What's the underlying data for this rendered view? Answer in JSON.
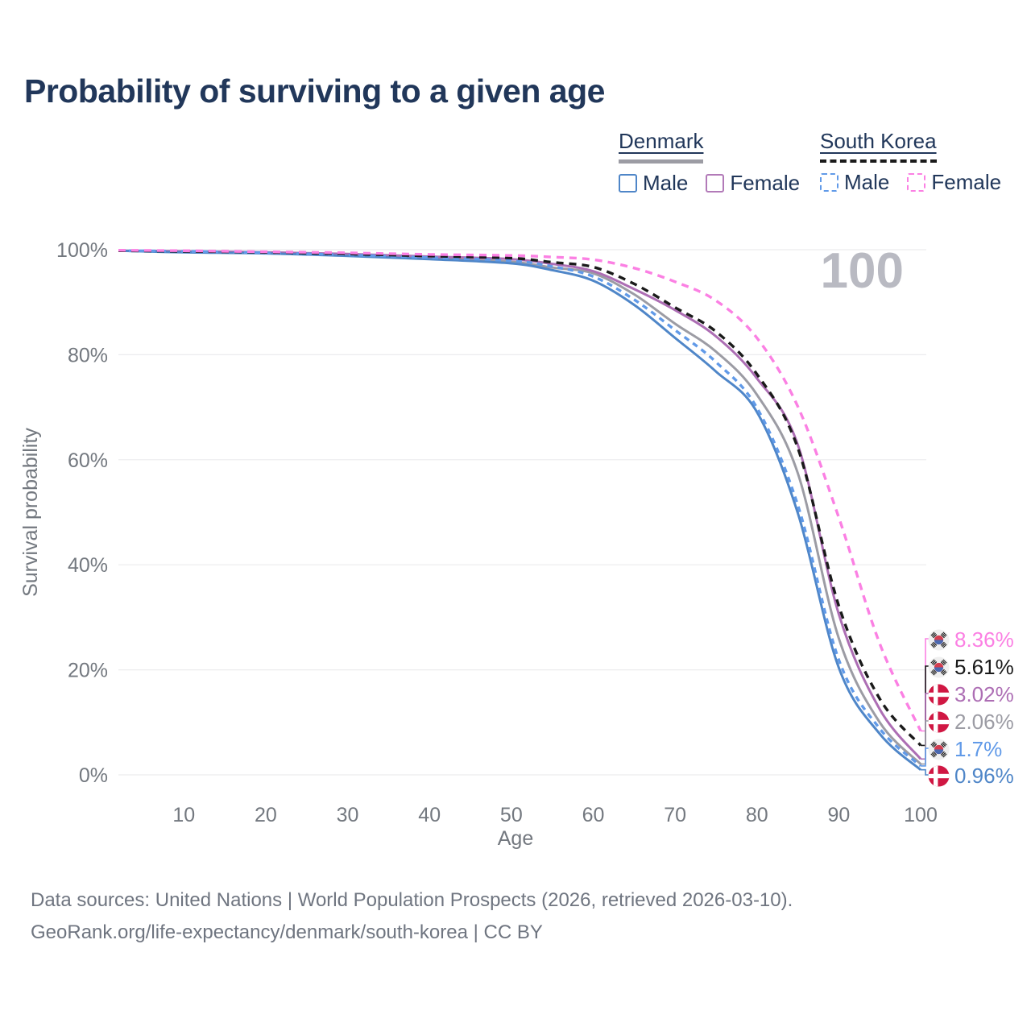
{
  "title": "Probability of surviving to a given age",
  "watermark": "100",
  "legend": {
    "groups": [
      {
        "id": "denmark",
        "label": "Denmark",
        "line_style": "solid",
        "line_color": "#9c9ca4",
        "items": [
          {
            "id": "dk_male",
            "label": "Male",
            "color": "#4f86c8",
            "dashed": false
          },
          {
            "id": "dk_female",
            "label": "Female",
            "color": "#b27ab8",
            "dashed": false
          }
        ]
      },
      {
        "id": "south_korea",
        "label": "South Korea",
        "line_style": "dashed",
        "line_color": "#1a1a1a",
        "items": [
          {
            "id": "kr_male",
            "label": "Male",
            "color": "#619ae8",
            "dashed": true
          },
          {
            "id": "kr_female",
            "label": "Female",
            "color": "#fb80e3",
            "dashed": true
          }
        ]
      }
    ]
  },
  "chart_data": {
    "type": "line",
    "title": "Probability of surviving to a given age",
    "xlabel": "Age",
    "ylabel": "Survival probability",
    "xlim": [
      2,
      100
    ],
    "ylim": [
      0,
      100
    ],
    "grid": "horizontal-only",
    "legend_position": "top-right",
    "x_ticks": [
      {
        "value": 10,
        "label": "10"
      },
      {
        "value": 20,
        "label": "20"
      },
      {
        "value": 30,
        "label": "30"
      },
      {
        "value": 40,
        "label": "40"
      },
      {
        "value": 50,
        "label": "50"
      },
      {
        "value": 60,
        "label": "60"
      },
      {
        "value": 70,
        "label": "70"
      },
      {
        "value": 80,
        "label": "80"
      },
      {
        "value": 90,
        "label": "90"
      },
      {
        "value": 100,
        "label": "100"
      }
    ],
    "y_ticks": [
      {
        "value": 100,
        "label": "100%"
      },
      {
        "value": 80,
        "label": "80%"
      },
      {
        "value": 60,
        "label": "60%"
      },
      {
        "value": 40,
        "label": "40%"
      },
      {
        "value": 20,
        "label": "20%"
      },
      {
        "value": 0,
        "label": "0%"
      }
    ],
    "ages": [
      2,
      10,
      20,
      30,
      40,
      50,
      55,
      60,
      65,
      70,
      75,
      80,
      85,
      90,
      95,
      100
    ],
    "series": [
      {
        "id": "dk_both",
        "name": "Denmark (both sexes)",
        "country": "denmark",
        "sex": "both",
        "color": "#9c9ca4",
        "dashed": false,
        "values": [
          99.8,
          99.6,
          99.4,
          99.0,
          98.4,
          97.7,
          96.6,
          95.5,
          91.5,
          85.9,
          80.6,
          72.4,
          57.4,
          26.0,
          10.0,
          2.06
        ]
      },
      {
        "id": "dk_female",
        "name": "Denmark Female",
        "country": "denmark",
        "sex": "female",
        "color": "#ad6eb4",
        "dashed": false,
        "values": [
          99.8,
          99.7,
          99.5,
          99.2,
          98.7,
          98.2,
          97.3,
          95.9,
          92.5,
          88.5,
          83.5,
          75.5,
          62.8,
          30.6,
          12.5,
          3.02
        ]
      },
      {
        "id": "dk_male",
        "name": "Denmark Male",
        "country": "denmark",
        "sex": "male",
        "color": "#4f86c8",
        "dashed": false,
        "values": [
          99.8,
          99.5,
          99.3,
          98.8,
          98.2,
          97.4,
          96.1,
          94.1,
          89.5,
          83.2,
          76.8,
          69.1,
          49.8,
          20.4,
          7.8,
          0.96
        ]
      },
      {
        "id": "kr_male",
        "name": "South Korea Male",
        "country": "south-korea",
        "sex": "male",
        "color": "#619ae8",
        "dashed": true,
        "values": [
          99.8,
          99.7,
          99.4,
          99.0,
          98.5,
          97.9,
          96.8,
          94.9,
          90.5,
          84.7,
          78.6,
          69.9,
          51.3,
          21.9,
          8.8,
          1.7
        ]
      },
      {
        "id": "kr_both",
        "name": "South Korea (both sexes)",
        "country": "south-korea",
        "sex": "both",
        "color": "#1a1a1a",
        "dashed": true,
        "values": [
          99.8,
          99.7,
          99.5,
          99.2,
          98.8,
          98.4,
          97.6,
          96.7,
          93.5,
          89.0,
          84.4,
          76.3,
          62.2,
          32.2,
          14.5,
          5.61
        ]
      },
      {
        "id": "kr_female",
        "name": "South Korea Female",
        "country": "south-korea",
        "sex": "female",
        "color": "#fb80e3",
        "dashed": true,
        "values": [
          99.9,
          99.8,
          99.6,
          99.4,
          99.1,
          98.9,
          98.6,
          98.1,
          96.5,
          93.9,
          90.3,
          83.2,
          70.1,
          49.0,
          25.0,
          8.36
        ]
      }
    ],
    "end_labels": [
      {
        "series": "kr_female",
        "flag": "south-korea",
        "text": "8.36%",
        "color": "#fb80e3"
      },
      {
        "series": "kr_both",
        "flag": "south-korea",
        "text": "5.61%",
        "color": "#1a1a1a"
      },
      {
        "series": "dk_female",
        "flag": "denmark",
        "text": "3.02%",
        "color": "#ad6eb4"
      },
      {
        "series": "dk_both",
        "flag": "denmark",
        "text": "2.06%",
        "color": "#9c9ca4"
      },
      {
        "series": "kr_male",
        "flag": "south-korea",
        "text": "1.7%",
        "color": "#619ae8"
      },
      {
        "series": "dk_male",
        "flag": "denmark",
        "text": "0.96%",
        "color": "#4f86c8"
      }
    ]
  },
  "footer": {
    "line1": "Data sources: United Nations | World Population Prospects (2026, retrieved 2026-03-10).",
    "line2": "GeoRank.org/life-expectancy/denmark/south-korea | CC BY"
  }
}
